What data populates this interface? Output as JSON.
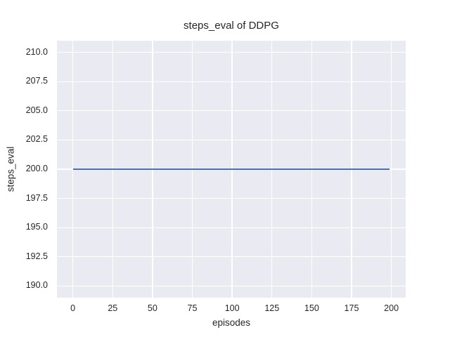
{
  "chart_data": {
    "type": "line",
    "title": "steps_eval of DDPG",
    "xlabel": "episodes",
    "ylabel": "steps_eval",
    "x_ticks": [
      0,
      25,
      50,
      75,
      100,
      125,
      150,
      175,
      200
    ],
    "x_tick_labels": [
      "0",
      "25",
      "50",
      "75",
      "100",
      "125",
      "150",
      "175",
      "200"
    ],
    "y_ticks": [
      210.0,
      207.5,
      205.0,
      202.5,
      200.0,
      197.5,
      195.0,
      192.5,
      190.0
    ],
    "y_tick_labels": [
      "210.0",
      "207.5",
      "205.0",
      "202.5",
      "200.0",
      "197.5",
      "195.0",
      "192.5",
      "190.0"
    ],
    "xlim": [
      -10,
      209
    ],
    "ylim": [
      189,
      211
    ],
    "grid": true,
    "legend": false,
    "series": [
      {
        "name": "DDPG steps_eval",
        "x": [
          0,
          199
        ],
        "y": [
          200,
          200
        ],
        "note": "constant value 200 for all episodes 0-199",
        "color": "#4c72b0"
      }
    ],
    "colors": {
      "plot_background": "#eaeaf2",
      "figure_background": "#ffffff",
      "gridline": "#ffffff",
      "text": "#262626",
      "line": "#4c72b0"
    }
  }
}
